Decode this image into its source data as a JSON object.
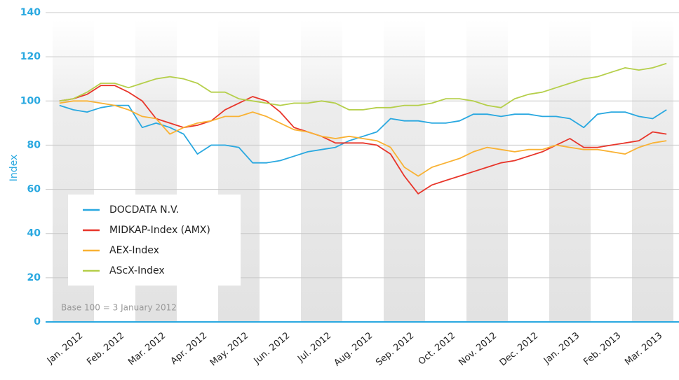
{
  "chart_data": {
    "type": "line",
    "y_label": "Index",
    "note": "Base 100 = 3 January 2012",
    "categories": [
      "Jan. 2012",
      null,
      null,
      "Feb. 2012",
      null,
      null,
      "Mar. 2012",
      null,
      null,
      "Apr. 2012",
      null,
      null,
      "May. 2012",
      null,
      null,
      "Jun. 2012",
      null,
      null,
      "Jul. 2012",
      null,
      null,
      "Aug. 2012",
      null,
      null,
      "Sep. 2012",
      null,
      null,
      "Oct. 2012",
      null,
      null,
      "Nov. 2012",
      null,
      null,
      "Dec. 2012",
      null,
      null,
      "Jan. 2013",
      null,
      null,
      "Feb. 2013",
      null,
      null,
      "Mar. 2013",
      null,
      null
    ],
    "series": [
      {
        "name": "DOCDATA N.V.",
        "color": "#29a8e0",
        "values": [
          98,
          96,
          95,
          97,
          98,
          98,
          88,
          90,
          88,
          85,
          76,
          80,
          80,
          79,
          72,
          72,
          73,
          75,
          77,
          78,
          79,
          82,
          84,
          86,
          92,
          91,
          91,
          90,
          90,
          91,
          94,
          94,
          93,
          94,
          94,
          93,
          93,
          92,
          88,
          94,
          95,
          95,
          93,
          92,
          96
        ]
      },
      {
        "name": "MIDKAP-Index (AMX)",
        "color": "#e8352a",
        "values": [
          100,
          101,
          103,
          107,
          107,
          104,
          100,
          92,
          90,
          88,
          89,
          91,
          96,
          99,
          102,
          100,
          95,
          88,
          86,
          84,
          81,
          81,
          81,
          80,
          76,
          66,
          58,
          62,
          64,
          66,
          68,
          70,
          72,
          73,
          75,
          77,
          80,
          83,
          79,
          79,
          80,
          81,
          82,
          86,
          85
        ]
      },
      {
        "name": "AEX-Index",
        "color": "#f9b234",
        "values": [
          99,
          100,
          100,
          99,
          98,
          96,
          93,
          92,
          85,
          88,
          90,
          91,
          93,
          93,
          95,
          93,
          90,
          87,
          86,
          84,
          83,
          84,
          83,
          82,
          79,
          70,
          66,
          70,
          72,
          74,
          77,
          79,
          78,
          77,
          78,
          78,
          80,
          79,
          78,
          78,
          77,
          76,
          79,
          81,
          82
        ]
      },
      {
        "name": "AScX-Index",
        "color": "#b5cf4a",
        "values": [
          100,
          101,
          104,
          108,
          108,
          106,
          108,
          110,
          111,
          110,
          108,
          104,
          104,
          101,
          100,
          99,
          98,
          99,
          99,
          100,
          99,
          96,
          96,
          97,
          97,
          98,
          98,
          99,
          101,
          101,
          100,
          98,
          97,
          101,
          103,
          104,
          106,
          108,
          110,
          111,
          113,
          115,
          114,
          115,
          117
        ]
      }
    ],
    "ylim": [
      0,
      140
    ],
    "yticks": [
      0,
      20,
      40,
      60,
      80,
      100,
      120,
      140
    ],
    "grid": true,
    "legend": "lower left"
  }
}
